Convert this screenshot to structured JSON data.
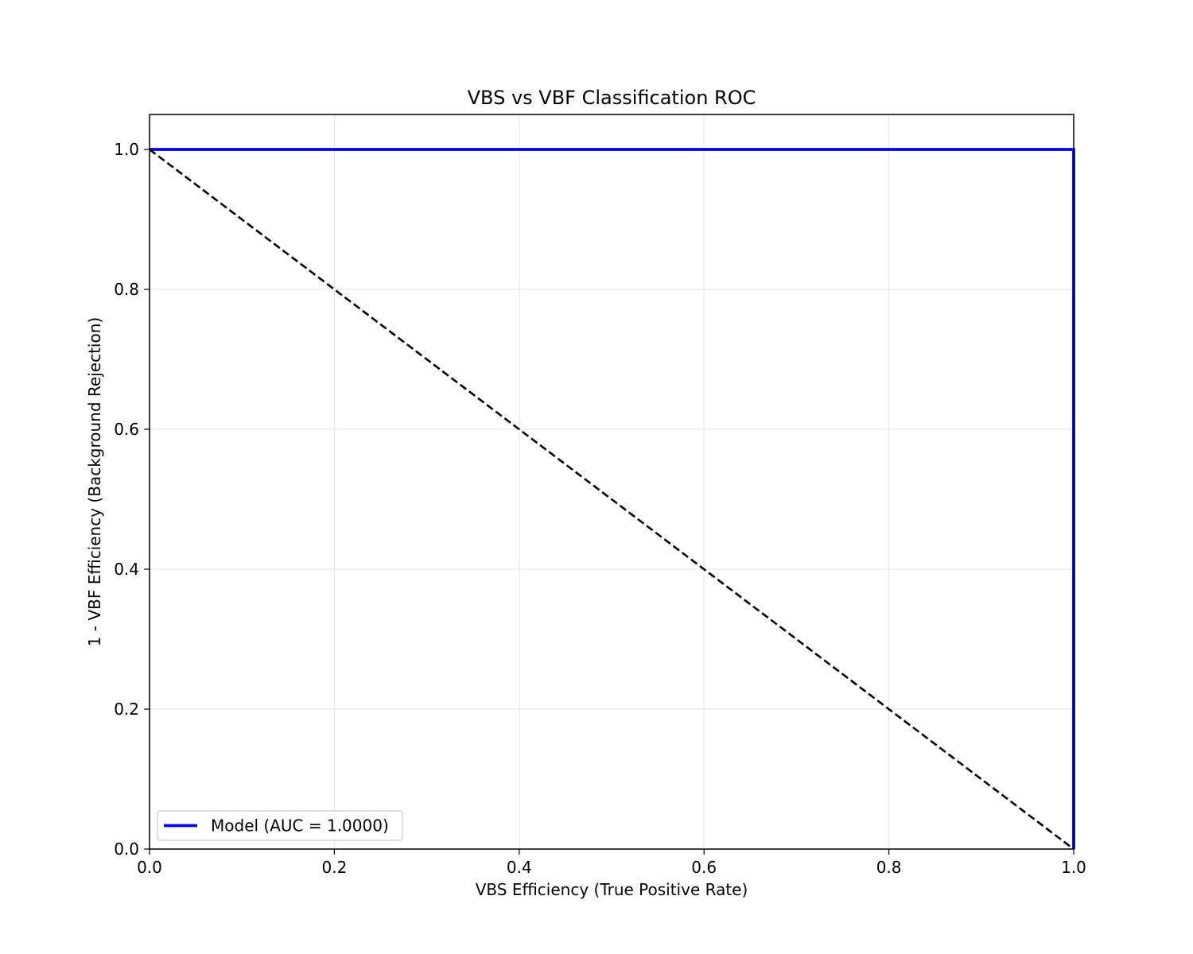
{
  "chart_data": {
    "type": "line",
    "title": "VBS vs VBF Classification ROC",
    "xlabel": "VBS Efficiency (True Positive Rate)",
    "ylabel": "1 - VBF Efficiency (Background Rejection)",
    "xlim": [
      0,
      1
    ],
    "ylim": [
      0,
      1.05
    ],
    "xticks": [
      0.0,
      0.2,
      0.4,
      0.6,
      0.8,
      1.0
    ],
    "yticks": [
      0.0,
      0.2,
      0.4,
      0.6,
      0.8,
      1.0
    ],
    "xtick_labels": [
      "0.0",
      "0.2",
      "0.4",
      "0.6",
      "0.8",
      "1.0"
    ],
    "ytick_labels": [
      "0.0",
      "0.2",
      "0.4",
      "0.6",
      "0.8",
      "1.0"
    ],
    "grid": true,
    "legend_position": "lower-left",
    "series": [
      {
        "name": "Model (AUC = 1.0000)",
        "color": "#0000ff",
        "style": "solid",
        "in_legend": true,
        "points": [
          [
            0.0,
            1.0
          ],
          [
            1.0,
            1.0
          ],
          [
            1.0,
            0.0
          ]
        ]
      },
      {
        "name": "",
        "color": "#000000",
        "style": "dashed",
        "in_legend": false,
        "points": [
          [
            0.0,
            1.0
          ],
          [
            1.0,
            0.0
          ]
        ]
      }
    ]
  }
}
